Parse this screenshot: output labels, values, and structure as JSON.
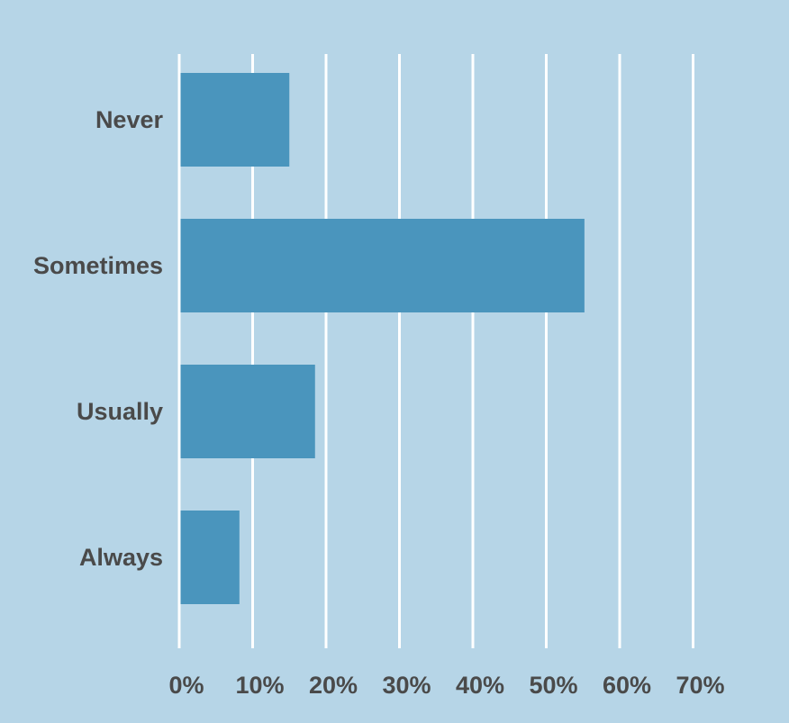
{
  "chart_data": {
    "type": "bar",
    "orientation": "horizontal",
    "title": "",
    "xlabel": "",
    "ylabel": "",
    "categories": [
      "Never",
      "Sometimes",
      "Usually",
      "Always"
    ],
    "values": [
      15,
      55.2,
      18.5,
      8.2
    ],
    "value_unit": "%",
    "xlim": [
      0,
      70
    ],
    "x_ticks": [
      0,
      10,
      20,
      30,
      40,
      50,
      60,
      70
    ],
    "x_tick_labels": [
      "0%",
      "10%",
      "20%",
      "30%",
      "40%",
      "50%",
      "60%",
      "70%"
    ],
    "grid": "vertical",
    "legend": "none"
  },
  "colors": {
    "background": "#b6d5e7",
    "bar": "#4a95bd",
    "grid": "#ffffff",
    "text": "#4a4a4a"
  }
}
